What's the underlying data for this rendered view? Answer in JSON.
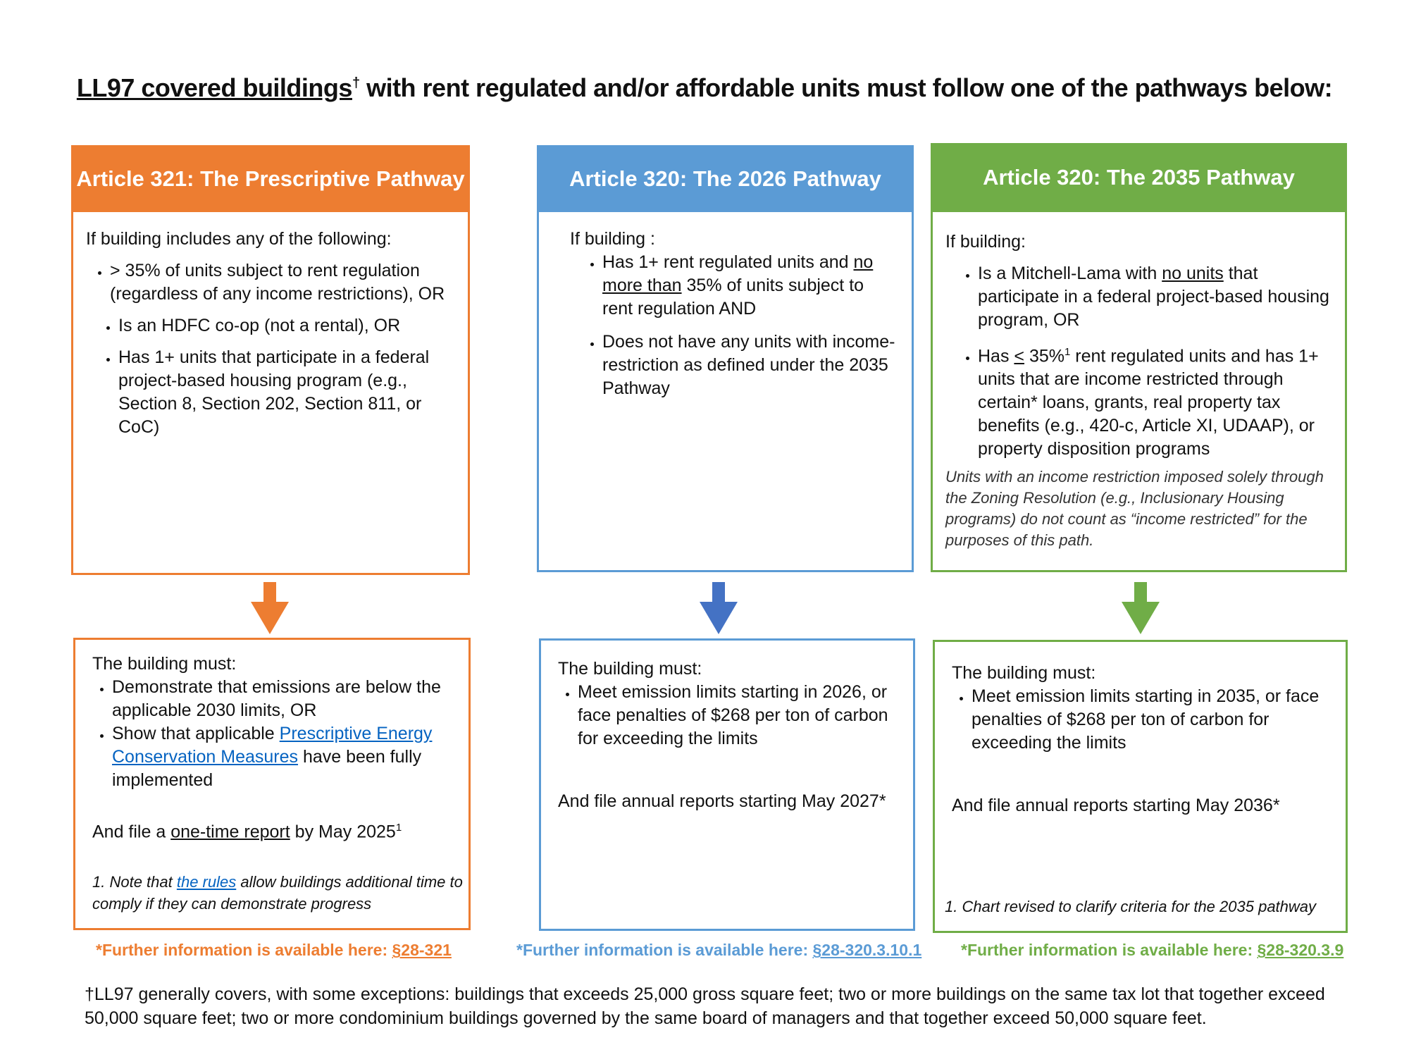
{
  "title": {
    "underlined": "LL97 covered buildings",
    "dagger": "†",
    "rest": " with rent regulated and/or affordable units must follow one of the pathways below:"
  },
  "colors": {
    "orange": "#ED7D31",
    "blue": "#5B9BD5",
    "green": "#70AD47",
    "arrow_blue": "#4472C4",
    "link": "#0563C1"
  },
  "pathways": [
    {
      "header": "Article 321: The Prescriptive Pathway",
      "intro": "If building includes any of the following:",
      "criteria": [
        "> 35% of units subject to rent regulation (regardless of any income restrictions), OR",
        "Is an HDFC co-op (not a rental), OR",
        "Has 1+ units that participate in a federal project-based housing program (e.g., Section 8, Section 202, Section 811, or CoC)"
      ],
      "must": "The building must:",
      "requirements": {
        "r1": "Demonstrate that emissions are below the applicable 2030 limits, OR",
        "r2_pre": "Show that applicable ",
        "r2_link": "Prescriptive Energy Conservation Measures",
        "r2_post": " have been fully implemented"
      },
      "file_pre": "And file a ",
      "file_link": "one-time report",
      "file_post": " by May 2025",
      "file_sup": "1",
      "note_pre": "1. Note that ",
      "note_link": "the rules",
      "note_post": " allow buildings additional time to comply if they can demonstrate progress",
      "more_label": "*Further information is available here: ",
      "more_link": "§28-321"
    },
    {
      "header": "Article 320: The 2026 Pathway",
      "intro": "If building :",
      "c1_pre": "Has 1+ rent regulated units and ",
      "c1_u": "no more than",
      "c1_post": " 35% of units subject to rent regulation AND",
      "c2": "Does not have any units with income-restriction as defined under the 2035 Pathway",
      "must": "The building must:",
      "requirement": "Meet emission limits starting in 2026, or face penalties of $268 per ton of carbon for exceeding the limits",
      "file": "And file annual reports starting May 2027*",
      "more_label": "*Further information is available here: ",
      "more_link": "§28-320.3.10.1"
    },
    {
      "header": "Article 320: The 2035 Pathway",
      "intro": "If building:",
      "c1_pre": "Is a Mitchell-Lama with ",
      "c1_u": "no units",
      "c1_post": " that participate in a federal project-based housing program, OR",
      "c2_pre": "Has ",
      "c2_u": "<",
      "c2_mid": " 35%",
      "c2_sup": "1",
      "c2_post": " rent regulated units and has 1+ units that are income restricted through certain* loans, grants, real property tax benefits (e.g., 420-c, Article XI, UDAAP), or property disposition programs",
      "italic_note": "Units with an income restriction imposed solely through the Zoning Resolution (e.g., Inclusionary Housing programs) do not count as “income restricted” for the purposes of this path.",
      "must": "The building must:",
      "requirement": "Meet emission limits starting in 2035, or face penalties of $268 per ton of carbon for exceeding the limits",
      "file": "And file annual reports starting May 2036*",
      "note": "1. Chart revised to clarify criteria for the 2035 pathway",
      "more_label": "*Further information is available here: ",
      "more_link": "§28-320.3.9"
    }
  ],
  "footnote": "†LL97 generally covers, with some exceptions: buildings that exceeds 25,000 gross square feet; two or more buildings on the same tax lot that together exceed 50,000 square feet; two or more condominium buildings governed by the same board of managers and that together exceed 50,000 square feet."
}
